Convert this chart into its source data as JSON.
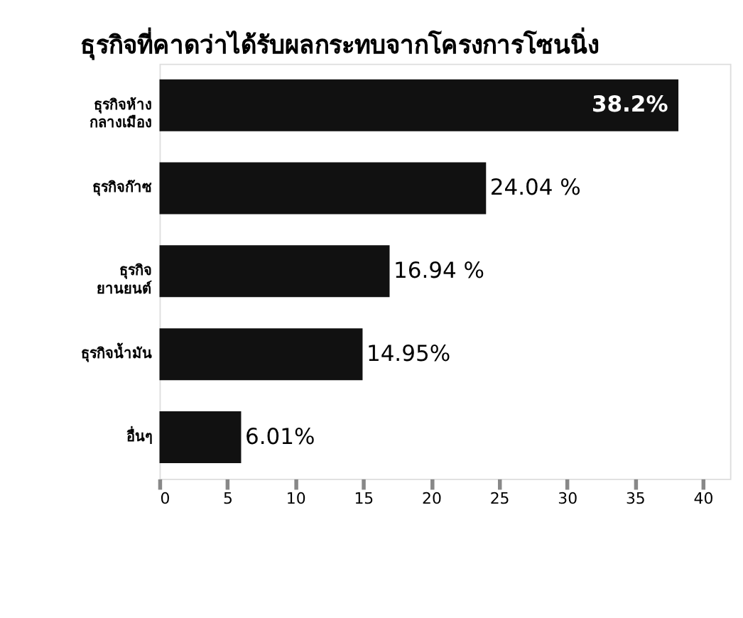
{
  "chart_data": {
    "type": "bar",
    "orientation": "horizontal",
    "title": "ธุรกิจที่คาดว่าได้รับผลกระทบจากโครงการโซนนิ่ง",
    "categories": [
      "ธุรกิจห้าง กลางเมือง",
      "ธุรกิจก๊าซ",
      "ธุรกิจ ยานยนต์",
      "ธุรกิจน้ำมัน",
      "อื่นๆ"
    ],
    "values": [
      38.2,
      24.04,
      16.94,
      14.95,
      6.01
    ],
    "value_labels": [
      "38.2%",
      "24.04 %",
      "16.94 %",
      "14.95%",
      "6.01%"
    ],
    "color": "#111111",
    "xlim": [
      0,
      42
    ],
    "xticks": [
      0,
      5,
      10,
      15,
      20,
      25,
      30,
      35,
      40
    ],
    "grid": false
  }
}
